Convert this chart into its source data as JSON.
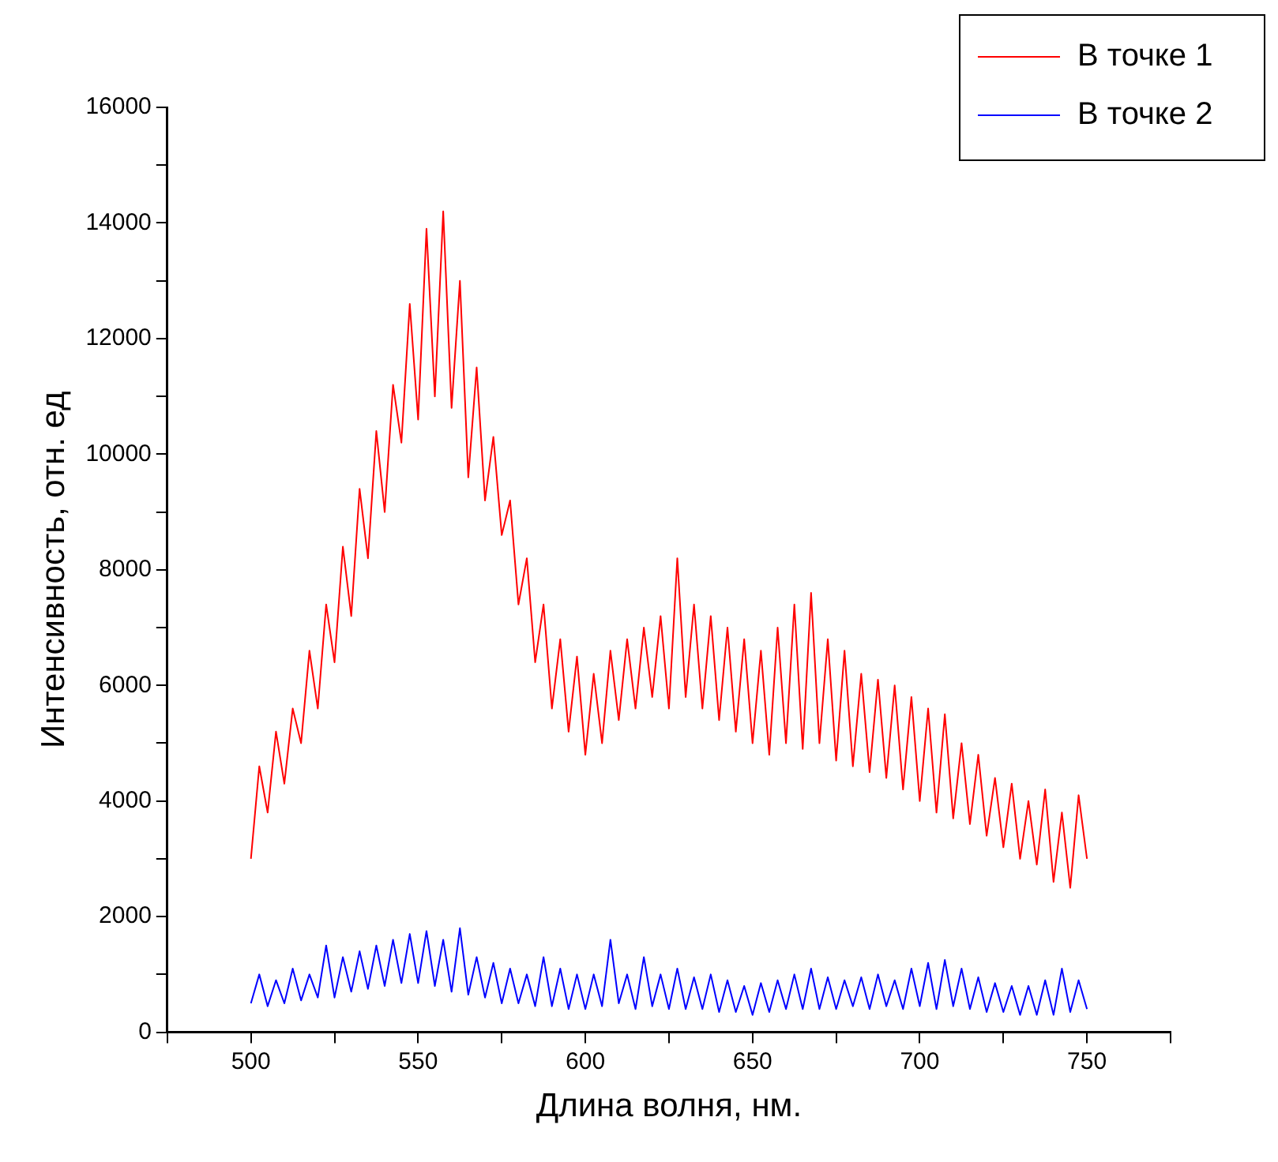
{
  "chart_data": {
    "type": "line",
    "xlabel": "Длина волня, нм.",
    "ylabel": "Интенсивность, отн. ед",
    "legend": "top right",
    "marker": "none",
    "line_style": "solid",
    "xlim": [
      475,
      775
    ],
    "xticks": [
      {
        "value": 475,
        "label": null
      },
      500,
      {
        "value": 525,
        "label": null
      },
      550,
      {
        "value": 575,
        "label": null
      },
      600,
      {
        "value": 625,
        "label": null
      },
      650,
      {
        "value": 675,
        "label": null
      },
      700,
      {
        "value": 725,
        "label": null
      },
      750,
      {
        "value": 775,
        "label": null
      }
    ],
    "ylim": [
      0,
      16000
    ],
    "yticks": [
      0,
      {
        "value": 1000,
        "label": null
      },
      2000,
      {
        "value": 3000,
        "label": null
      },
      4000,
      {
        "value": 5000,
        "label": null
      },
      6000,
      {
        "value": 7000,
        "label": null
      },
      8000,
      {
        "value": 9000,
        "label": null
      },
      10000,
      {
        "value": 11000,
        "label": null
      },
      12000,
      {
        "value": 13000,
        "label": null
      },
      14000,
      {
        "value": 15000,
        "label": null
      },
      16000
    ],
    "x": [
      500,
      502.5,
      505,
      507.5,
      510,
      512.5,
      515,
      517.5,
      520,
      522.5,
      525,
      527.5,
      530,
      532.5,
      535,
      537.5,
      540,
      542.5,
      545,
      547.5,
      550,
      552.5,
      555,
      557.5,
      560,
      562.5,
      565,
      567.5,
      570,
      572.5,
      575,
      577.5,
      580,
      582.5,
      585,
      587.5,
      590,
      592.5,
      595,
      597.5,
      600,
      602.5,
      605,
      607.5,
      610,
      612.5,
      615,
      617.5,
      620,
      622.5,
      625,
      627.5,
      630,
      632.5,
      635,
      637.5,
      640,
      642.5,
      645,
      647.5,
      650,
      652.5,
      655,
      657.5,
      660,
      662.5,
      665,
      667.5,
      670,
      672.5,
      675,
      677.5,
      680,
      682.5,
      685,
      687.5,
      690,
      692.5,
      695,
      697.5,
      700,
      702.5,
      705,
      707.5,
      710,
      712.5,
      715,
      717.5,
      720,
      722.5,
      725,
      727.5,
      730,
      732.5,
      735,
      737.5,
      740,
      742.5,
      745,
      747.5,
      750
    ],
    "series": [
      {
        "name": "В точке 1",
        "color": "#ff0000",
        "values": [
          3000,
          4600,
          3800,
          5200,
          4300,
          5600,
          5000,
          6600,
          5600,
          7400,
          6400,
          8400,
          7200,
          9400,
          8200,
          10400,
          9000,
          11200,
          10200,
          12600,
          10600,
          13900,
          11000,
          14200,
          10800,
          13000,
          9600,
          11500,
          9200,
          10300,
          8600,
          9200,
          7400,
          8200,
          6400,
          7400,
          5600,
          6800,
          5200,
          6500,
          4800,
          6200,
          5000,
          6600,
          5400,
          6800,
          5600,
          7000,
          5800,
          7200,
          5600,
          8200,
          5800,
          7400,
          5600,
          7200,
          5400,
          7000,
          5200,
          6800,
          5000,
          6600,
          4800,
          7000,
          5000,
          7400,
          4900,
          7600,
          5000,
          6800,
          4700,
          6600,
          4600,
          6200,
          4500,
          6100,
          4400,
          6000,
          4200,
          5800,
          4000,
          5600,
          3800,
          5500,
          3700,
          5000,
          3600,
          4800,
          3400,
          4400,
          3200,
          4300,
          3000,
          4000,
          2900,
          4200,
          2600,
          3800,
          2500,
          4100,
          3000
        ]
      },
      {
        "name": "В точке 2",
        "color": "#0000ff",
        "values": [
          500,
          1000,
          450,
          900,
          500,
          1100,
          550,
          1000,
          600,
          1500,
          600,
          1300,
          700,
          1400,
          750,
          1500,
          800,
          1600,
          850,
          1700,
          850,
          1750,
          800,
          1600,
          700,
          1800,
          650,
          1300,
          600,
          1200,
          500,
          1100,
          500,
          1000,
          450,
          1300,
          450,
          1100,
          400,
          1000,
          400,
          1000,
          450,
          1600,
          500,
          1000,
          400,
          1300,
          450,
          1000,
          400,
          1100,
          400,
          950,
          400,
          1000,
          350,
          900,
          350,
          800,
          300,
          850,
          350,
          900,
          400,
          1000,
          400,
          1100,
          400,
          950,
          400,
          900,
          450,
          950,
          400,
          1000,
          450,
          900,
          400,
          1100,
          450,
          1200,
          400,
          1250,
          450,
          1100,
          400,
          950,
          350,
          850,
          350,
          800,
          300,
          800,
          300,
          900,
          300,
          1100,
          350,
          900,
          400
        ]
      }
    ]
  }
}
